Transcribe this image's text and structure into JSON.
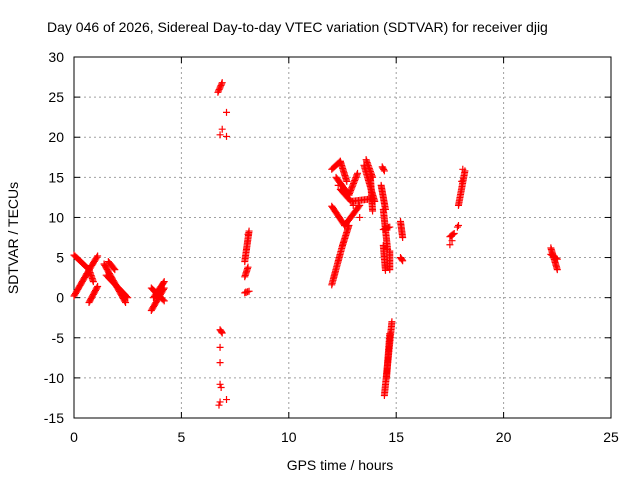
{
  "chart_data": {
    "type": "scatter",
    "title": "Day 046 of 2026, Sidereal Day-to-day VTEC variation (SDTVAR) for receiver djig",
    "xlabel": "GPS time / hours",
    "ylabel": "SDTVAR / TECUs",
    "xlim": [
      0,
      25
    ],
    "ylim": [
      -15,
      30
    ],
    "xticks": [
      "0",
      "5",
      "10",
      "15",
      "20",
      "25"
    ],
    "yticks": [
      "-15",
      "-10",
      "-5",
      "0",
      "5",
      "10",
      "15",
      "20",
      "25",
      "30"
    ],
    "grid": true,
    "marker": "+",
    "color": "#ff0000",
    "segments": [
      {
        "x0": 0.0,
        "y0": 0.2,
        "x1": 0.6,
        "y1": 3.0
      },
      {
        "x0": 0.6,
        "y0": 3.0,
        "x1": 1.1,
        "y1": 5.2
      },
      {
        "x0": 0.0,
        "y0": 5.3,
        "x1": 0.7,
        "y1": 3.5
      },
      {
        "x0": 0.7,
        "y0": 3.5,
        "x1": 0.9,
        "y1": 2.0
      },
      {
        "x0": 0.7,
        "y0": -0.6,
        "x1": 1.1,
        "y1": 1.4
      },
      {
        "x0": 1.4,
        "y0": 4.2,
        "x1": 2.4,
        "y1": -0.6
      },
      {
        "x0": 1.5,
        "y0": 2.8,
        "x1": 2.5,
        "y1": 0.0
      },
      {
        "x0": 1.6,
        "y0": 4.5,
        "x1": 1.9,
        "y1": 3.5
      },
      {
        "x0": 3.6,
        "y0": -1.6,
        "x1": 4.2,
        "y1": 1.2
      },
      {
        "x0": 3.6,
        "y0": 1.2,
        "x1": 4.2,
        "y1": -0.4
      },
      {
        "x0": 3.7,
        "y0": 0.0,
        "x1": 4.2,
        "y1": 2.0
      },
      {
        "x0": 6.7,
        "y0": 25.6,
        "x1": 6.9,
        "y1": 26.8
      },
      {
        "x0": 6.9,
        "y0": -4.4,
        "x1": 6.8,
        "y1": -4.0
      },
      {
        "x0": 7.95,
        "y0": 4.5,
        "x1": 8.15,
        "y1": 8.3
      },
      {
        "x0": 7.95,
        "y0": 2.6,
        "x1": 8.1,
        "y1": 3.8
      },
      {
        "x0": 7.95,
        "y0": 0.6,
        "x1": 8.15,
        "y1": 0.8
      },
      {
        "x0": 12.0,
        "y0": 1.6,
        "x1": 12.5,
        "y1": 6.5
      },
      {
        "x0": 12.5,
        "y0": 6.5,
        "x1": 12.8,
        "y1": 9.0
      },
      {
        "x0": 12.0,
        "y0": 11.4,
        "x1": 12.6,
        "y1": 9.0
      },
      {
        "x0": 12.6,
        "y0": 9.0,
        "x1": 13.3,
        "y1": 11.5
      },
      {
        "x0": 12.0,
        "y0": 16.0,
        "x1": 12.4,
        "y1": 17.0
      },
      {
        "x0": 12.4,
        "y0": 17.0,
        "x1": 12.7,
        "y1": 14.5
      },
      {
        "x0": 12.2,
        "y0": 15.0,
        "x1": 12.8,
        "y1": 12.8
      },
      {
        "x0": 12.8,
        "y0": 12.8,
        "x1": 13.2,
        "y1": 15.5
      },
      {
        "x0": 12.4,
        "y0": 13.5,
        "x1": 12.9,
        "y1": 12.0
      },
      {
        "x0": 12.9,
        "y0": 12.0,
        "x1": 13.8,
        "y1": 12.3
      },
      {
        "x0": 13.5,
        "y0": 16.5,
        "x1": 14.0,
        "y1": 12.0
      },
      {
        "x0": 13.6,
        "y0": 17.2,
        "x1": 13.9,
        "y1": 15.0
      },
      {
        "x0": 13.8,
        "y0": 15.0,
        "x1": 13.9,
        "y1": 10.8
      },
      {
        "x0": 14.35,
        "y0": 16.3,
        "x1": 14.45,
        "y1": 15.8
      },
      {
        "x0": 14.3,
        "y0": 14.0,
        "x1": 14.5,
        "y1": 11.0
      },
      {
        "x0": 14.4,
        "y0": 11.0,
        "x1": 14.6,
        "y1": 6.0
      },
      {
        "x0": 14.4,
        "y0": 8.5,
        "x1": 14.7,
        "y1": 8.8
      },
      {
        "x0": 14.4,
        "y0": 6.5,
        "x1": 14.5,
        "y1": 3.4
      },
      {
        "x0": 14.7,
        "y0": 5.8,
        "x1": 14.7,
        "y1": 3.5
      },
      {
        "x0": 14.45,
        "y0": -12.2,
        "x1": 14.8,
        "y1": -3.0
      },
      {
        "x0": 14.55,
        "y0": -10.0,
        "x1": 14.7,
        "y1": -4.5
      },
      {
        "x0": 15.2,
        "y0": 9.5,
        "x1": 15.3,
        "y1": 7.5
      },
      {
        "x0": 15.2,
        "y0": 5.0,
        "x1": 15.3,
        "y1": 4.6
      },
      {
        "x0": 17.5,
        "y0": 7.6,
        "x1": 17.7,
        "y1": 8.0
      },
      {
        "x0": 17.9,
        "y0": 11.5,
        "x1": 18.2,
        "y1": 15.8
      },
      {
        "x0": 22.2,
        "y0": 6.2,
        "x1": 22.5,
        "y1": 3.5
      },
      {
        "x0": 22.2,
        "y0": 5.4,
        "x1": 22.5,
        "y1": 4.8
      }
    ],
    "points": [
      [
        6.9,
        21.0
      ],
      [
        6.8,
        20.3
      ],
      [
        7.1,
        20.1
      ],
      [
        7.1,
        23.1
      ],
      [
        6.8,
        -6.2
      ],
      [
        6.8,
        -8.1
      ],
      [
        6.8,
        -10.8
      ],
      [
        6.85,
        -11.2
      ],
      [
        6.75,
        -13.4
      ],
      [
        6.8,
        -13.0
      ],
      [
        7.1,
        -12.7
      ],
      [
        8.0,
        0.7
      ],
      [
        8.1,
        7.9
      ],
      [
        12.3,
        14.0
      ],
      [
        13.3,
        10.0
      ],
      [
        13.0,
        11.5
      ],
      [
        17.5,
        6.6
      ],
      [
        17.6,
        7.1
      ],
      [
        17.85,
        8.8
      ],
      [
        17.9,
        9.0
      ],
      [
        18.05,
        14.5
      ],
      [
        18.1,
        16.0
      ]
    ]
  }
}
